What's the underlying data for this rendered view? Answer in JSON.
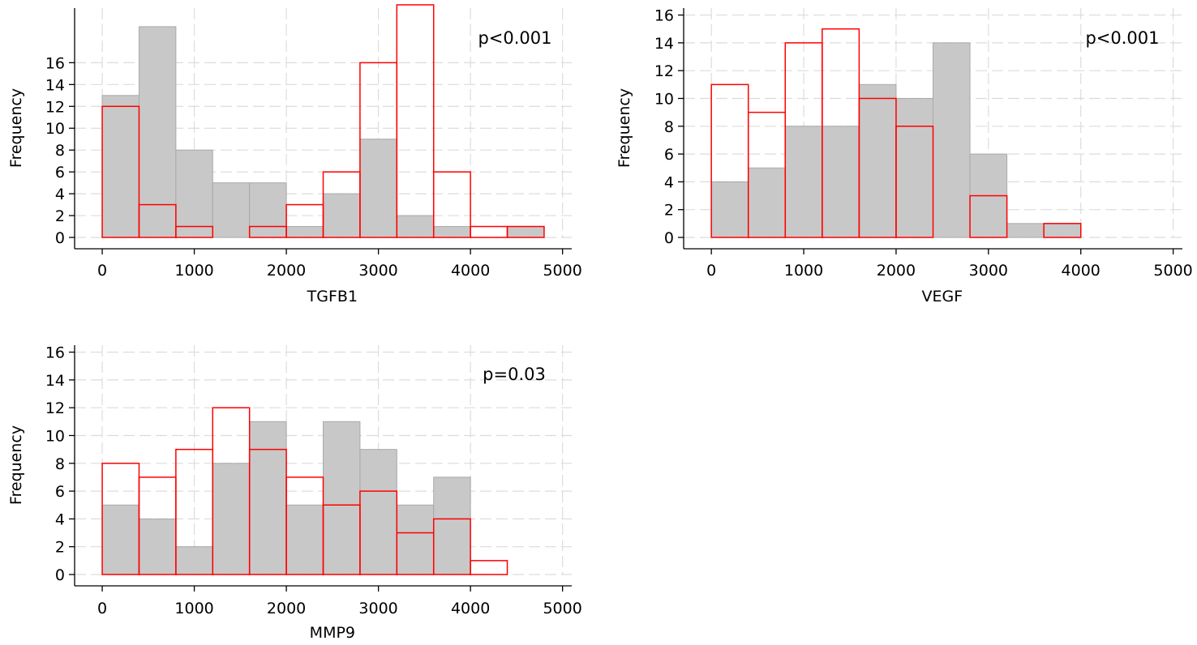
{
  "colors": {
    "grey_fill": "#c8c8c8",
    "grey_stroke": "#a9a9a9",
    "red_stroke": "#ff0000",
    "grid": "#dcdcdc",
    "axis": "#000000"
  },
  "chart_data": [
    {
      "type": "bar",
      "name": "tgfb1",
      "xlabel": "TGFB1",
      "ylabel": "Frequency",
      "annotation": "p<0.001",
      "bin_width": 400,
      "xlim": [
        -300,
        5100
      ],
      "ylim": [
        0,
        21
      ],
      "xticks": [
        "0",
        "1000",
        "2000",
        "3000",
        "4000",
        "5000"
      ],
      "xtick_values": [
        0,
        1000,
        2000,
        3000,
        4000,
        5000
      ],
      "yticks": [
        "0",
        "2",
        "4",
        "6",
        "8",
        "10",
        "12",
        "14",
        "16"
      ],
      "ytick_values": [
        0,
        2,
        4,
        6,
        8,
        10,
        12,
        14,
        16
      ],
      "series": [
        {
          "name": "grey",
          "bin_starts": [
            0,
            400,
            800,
            1200,
            1600,
            2000,
            2400,
            2800,
            3200,
            3600,
            4000,
            4400
          ],
          "values": [
            13,
            19.3,
            8,
            5,
            5,
            1,
            4,
            9,
            2,
            1,
            0,
            1
          ]
        },
        {
          "name": "red",
          "bin_starts": [
            0,
            400,
            800,
            1600,
            2000,
            2400,
            2800,
            3200,
            3600,
            4000,
            4400
          ],
          "values": [
            12,
            3,
            1,
            1,
            3,
            6,
            16,
            21.3,
            6,
            1,
            1
          ]
        }
      ]
    },
    {
      "type": "bar",
      "name": "vegf",
      "xlabel": "VEGF",
      "ylabel": "Frequency",
      "annotation": "p<0.001",
      "bin_width": 400,
      "xlim": [
        -300,
        5100
      ],
      "ylim": [
        0,
        16.5
      ],
      "xticks": [
        "0",
        "1000",
        "2000",
        "3000",
        "4000",
        "5000"
      ],
      "xtick_values": [
        0,
        1000,
        2000,
        3000,
        4000,
        5000
      ],
      "yticks": [
        "0",
        "2",
        "4",
        "6",
        "8",
        "10",
        "12",
        "14",
        "16"
      ],
      "ytick_values": [
        0,
        2,
        4,
        6,
        8,
        10,
        12,
        14,
        16
      ],
      "series": [
        {
          "name": "grey",
          "bin_starts": [
            0,
            400,
            800,
            1200,
            1600,
            2000,
            2400,
            2800,
            3200,
            3600
          ],
          "values": [
            4,
            5,
            8,
            8,
            11,
            10,
            14,
            6,
            1,
            1
          ]
        },
        {
          "name": "red",
          "bin_starts": [
            0,
            400,
            800,
            1200,
            1600,
            2000,
            2800,
            3600
          ],
          "values": [
            11,
            9,
            14,
            15,
            10,
            8,
            3,
            1
          ]
        }
      ]
    },
    {
      "type": "bar",
      "name": "mmp9",
      "xlabel": "MMP9",
      "ylabel": "Frequency",
      "annotation": "p=0.03",
      "bin_width": 400,
      "xlim": [
        -300,
        5100
      ],
      "ylim": [
        0,
        16.5
      ],
      "xticks": [
        "0",
        "1000",
        "2000",
        "3000",
        "4000",
        "5000"
      ],
      "xtick_values": [
        0,
        1000,
        2000,
        3000,
        4000,
        5000
      ],
      "yticks": [
        "0",
        "2",
        "4",
        "6",
        "8",
        "10",
        "12",
        "14",
        "16"
      ],
      "ytick_values": [
        0,
        2,
        4,
        6,
        8,
        10,
        12,
        14,
        16
      ],
      "series": [
        {
          "name": "grey",
          "bin_starts": [
            0,
            400,
            800,
            1200,
            1600,
            2000,
            2400,
            2800,
            3200,
            3600
          ],
          "values": [
            5,
            4,
            2,
            8,
            11,
            5,
            11,
            9,
            5,
            7
          ]
        },
        {
          "name": "red",
          "bin_starts": [
            0,
            400,
            800,
            1200,
            1600,
            2000,
            2400,
            2800,
            3200,
            3600,
            4000
          ],
          "values": [
            8,
            7,
            9,
            12,
            9,
            7,
            5,
            6,
            3,
            4,
            1
          ]
        }
      ]
    }
  ]
}
